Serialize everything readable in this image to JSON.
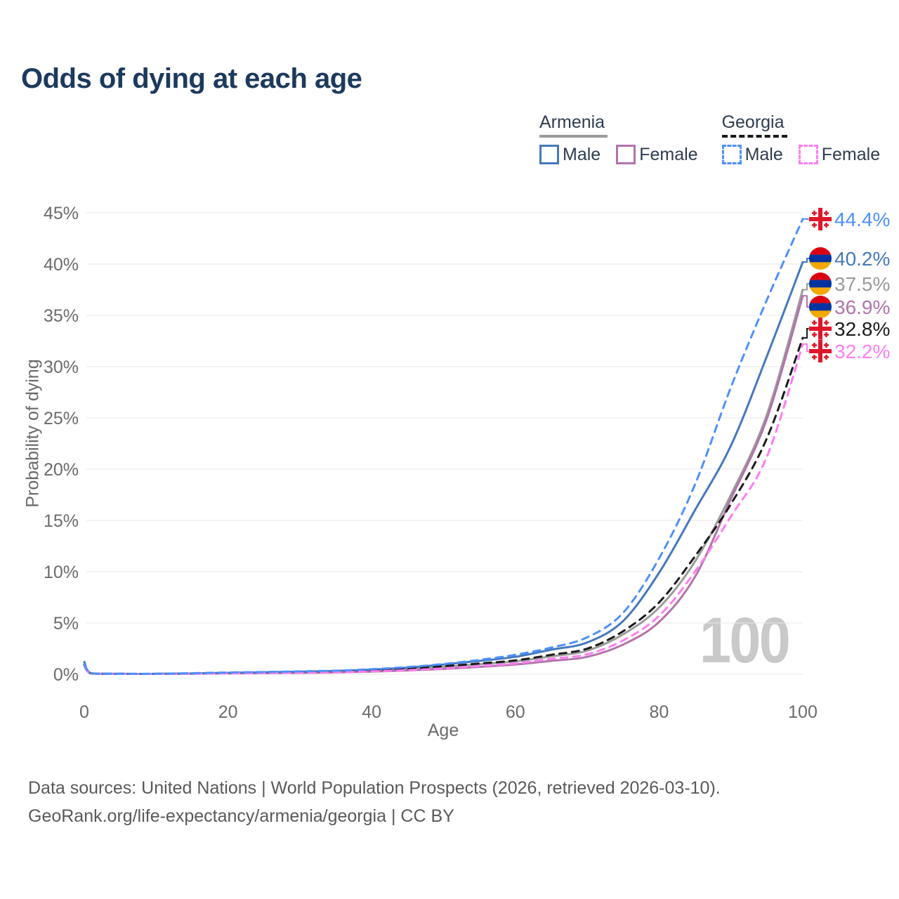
{
  "title": "Odds of dying at each age",
  "legend": {
    "armenia": {
      "label": "Armenia",
      "male_label": "Male",
      "female_label": "Female"
    },
    "georgia": {
      "label": "Georgia",
      "male_label": "Male",
      "female_label": "Female"
    }
  },
  "watermark": "100",
  "footer": {
    "line1": "Data sources: United Nations | World Population Prospects (2026, retrieved 2026-03-10).",
    "line2": "GeoRank.org/life-expectancy/armenia/georgia | CC BY"
  },
  "colors": {
    "title_text": "#1c3a5e",
    "legend_text": "#2e3c50",
    "axis_text": "#6b6b6b",
    "gridline": "#e7e7e7",
    "watermark": "#c9c9c9",
    "footer_text": "#595959",
    "armenia_flag": [
      "#d90012",
      "#0033a0",
      "#f2a800"
    ],
    "georgia_flag_red": "#e0162b"
  },
  "chart_data": {
    "type": "line",
    "title": "Odds of dying at each age",
    "xlabel": "Age",
    "ylabel": "Probability of dying",
    "xlim": [
      0,
      100
    ],
    "ylim": [
      0,
      45
    ],
    "grid": true,
    "legend_position": "top-right",
    "x_ticks": [
      0,
      20,
      40,
      60,
      80,
      100
    ],
    "y_ticks": [
      0,
      5,
      10,
      15,
      20,
      25,
      30,
      35,
      40,
      45
    ],
    "y_tick_labels": [
      "0%",
      "5%",
      "10%",
      "15%",
      "20%",
      "25%",
      "30%",
      "35%",
      "40%",
      "45%"
    ],
    "x": [
      0,
      1,
      5,
      10,
      15,
      20,
      25,
      30,
      35,
      40,
      45,
      50,
      55,
      60,
      65,
      70,
      75,
      80,
      85,
      90,
      95,
      100
    ],
    "series": [
      {
        "id": "georgia-male",
        "name": "Georgia Male",
        "country": "Georgia",
        "sex": "Male",
        "style": "dashed",
        "color": "#4d90fe",
        "flag": "georgia",
        "end_label": "44.4%",
        "values": [
          1.0,
          0.1,
          0.05,
          0.05,
          0.1,
          0.17,
          0.22,
          0.28,
          0.35,
          0.5,
          0.7,
          1.0,
          1.4,
          1.9,
          2.6,
          3.6,
          6.0,
          11.3,
          18.5,
          28.0,
          36.5,
          44.4
        ]
      },
      {
        "id": "armenia-male",
        "name": "Armenia Male",
        "country": "Armenia",
        "sex": "Male",
        "style": "solid",
        "color": "#4678bd",
        "flag": "armenia",
        "end_label": "40.2%",
        "values": [
          1.2,
          0.08,
          0.04,
          0.04,
          0.08,
          0.14,
          0.19,
          0.25,
          0.32,
          0.45,
          0.65,
          0.95,
          1.3,
          1.7,
          2.4,
          3.1,
          5.2,
          9.9,
          16.0,
          22.3,
          31.0,
          40.2
        ]
      },
      {
        "id": "armenia-both",
        "name": "Armenia Both sexes",
        "country": "Armenia",
        "sex": "Both",
        "style": "solid",
        "color": "#9b9b9b",
        "flag": "armenia",
        "end_label": "37.5%",
        "values": [
          1.0,
          0.08,
          0.04,
          0.04,
          0.07,
          0.11,
          0.15,
          0.19,
          0.25,
          0.35,
          0.5,
          0.72,
          0.98,
          1.25,
          1.75,
          2.3,
          3.9,
          6.5,
          11.0,
          17.5,
          25.3,
          37.5
        ]
      },
      {
        "id": "armenia-female",
        "name": "Armenia Female",
        "country": "Armenia",
        "sex": "Female",
        "style": "solid",
        "color": "#b273ab",
        "flag": "armenia",
        "end_label": "36.9%",
        "values": [
          0.9,
          0.07,
          0.03,
          0.03,
          0.05,
          0.08,
          0.11,
          0.14,
          0.18,
          0.26,
          0.37,
          0.52,
          0.72,
          0.95,
          1.3,
          1.7,
          2.9,
          5.1,
          9.5,
          17.1,
          24.9,
          36.9
        ]
      },
      {
        "id": "georgia-both",
        "name": "Georgia Both sexes",
        "country": "Georgia",
        "sex": "Both",
        "style": "dashed",
        "color": "#1a1a1a",
        "flag": "georgia",
        "end_label": "32.8%",
        "values": [
          0.9,
          0.09,
          0.04,
          0.04,
          0.08,
          0.13,
          0.17,
          0.21,
          0.27,
          0.38,
          0.53,
          0.78,
          1.05,
          1.35,
          1.9,
          2.5,
          4.2,
          7.0,
          11.5,
          16.6,
          23.0,
          32.8
        ]
      },
      {
        "id": "georgia-female",
        "name": "Georgia Female",
        "country": "Georgia",
        "sex": "Female",
        "style": "dashed",
        "color": "#ff7df2",
        "flag": "georgia",
        "end_label": "32.2%",
        "values": [
          0.8,
          0.08,
          0.03,
          0.03,
          0.06,
          0.09,
          0.12,
          0.15,
          0.2,
          0.28,
          0.4,
          0.57,
          0.8,
          1.05,
          1.5,
          1.95,
          3.3,
          5.7,
          10.0,
          15.4,
          21.2,
          32.2
        ]
      }
    ]
  }
}
